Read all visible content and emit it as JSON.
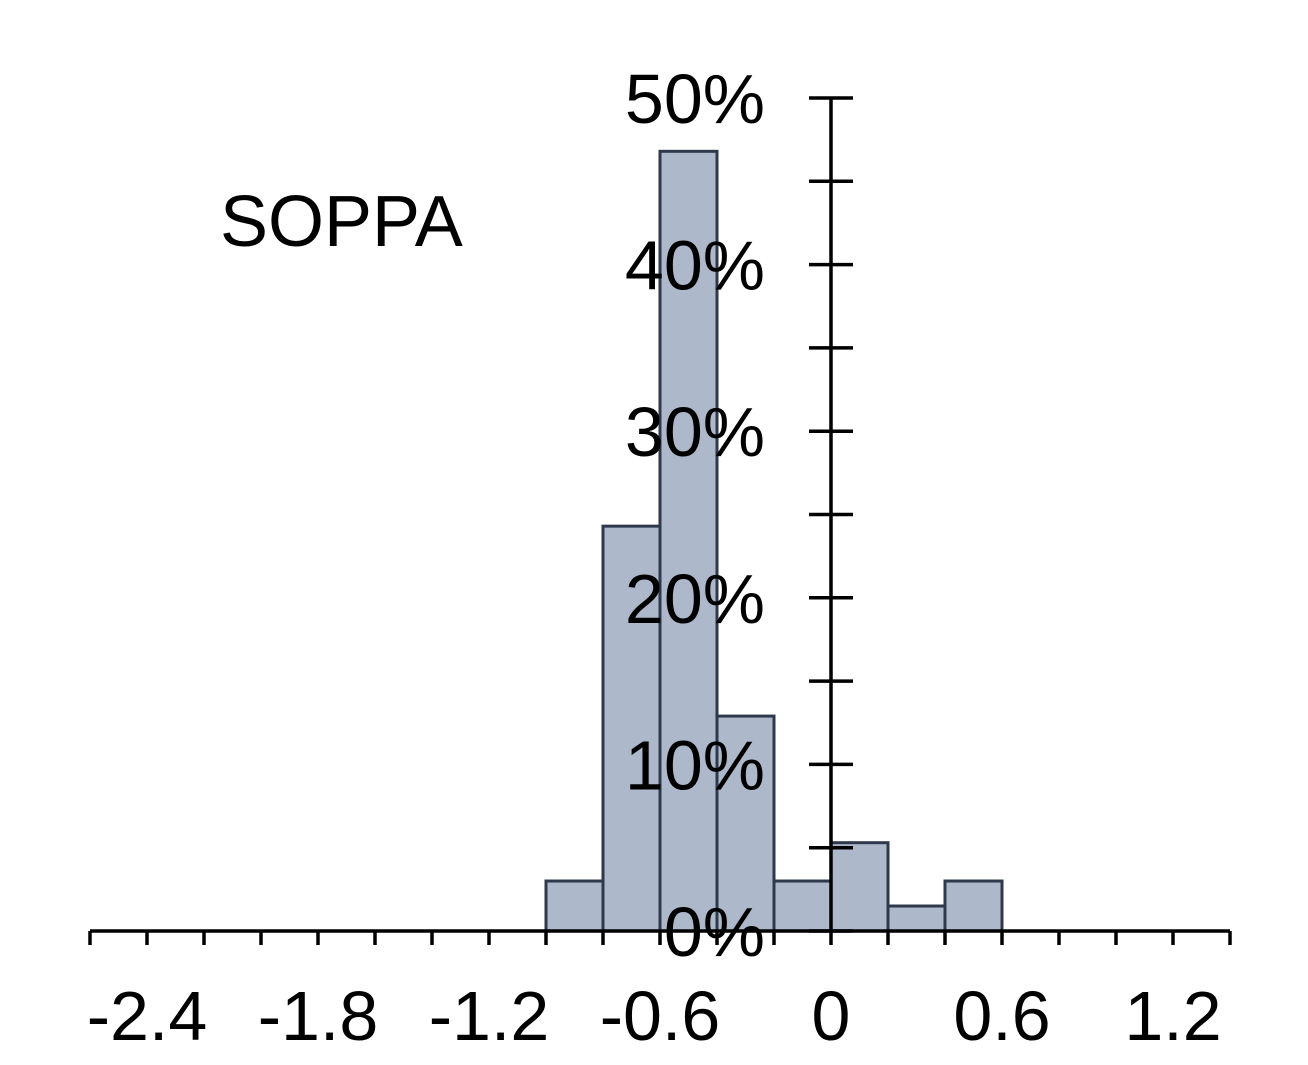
{
  "chart_data": {
    "type": "bar",
    "title": "",
    "xlabel": "",
    "ylabel": "",
    "annotation": "SOPPA",
    "bin_edges": [
      -1.0,
      -0.8,
      -0.6,
      -0.4,
      -0.2,
      0.0,
      0.2,
      0.4,
      0.6
    ],
    "values": [
      3,
      24.3,
      46.8,
      12.9,
      3,
      5.3,
      1.5,
      3
    ],
    "value_unit": "%",
    "xlim": [
      -2.6,
      1.4
    ],
    "ylim": [
      0,
      50
    ],
    "x_ticks": [
      "-2.4",
      "-1.8",
      "-1.2",
      "-0.6",
      "0",
      "0.6",
      "1.2"
    ],
    "x_tick_values": [
      -2.4,
      -1.8,
      -1.2,
      -0.6,
      0,
      0.6,
      1.2
    ],
    "y_ticks": [
      "0%",
      "10%",
      "20%",
      "30%",
      "40%",
      "50%"
    ],
    "y_tick_values": [
      0,
      10,
      20,
      30,
      40,
      50
    ],
    "x_minor_step": 0.2,
    "y_minor_step": 5,
    "grid": false,
    "legend": "none",
    "colors": {
      "bar_fill": "#adb8cb",
      "bar_stroke": "#2e3a4b",
      "axis": "#000000",
      "text": "#000000"
    }
  }
}
